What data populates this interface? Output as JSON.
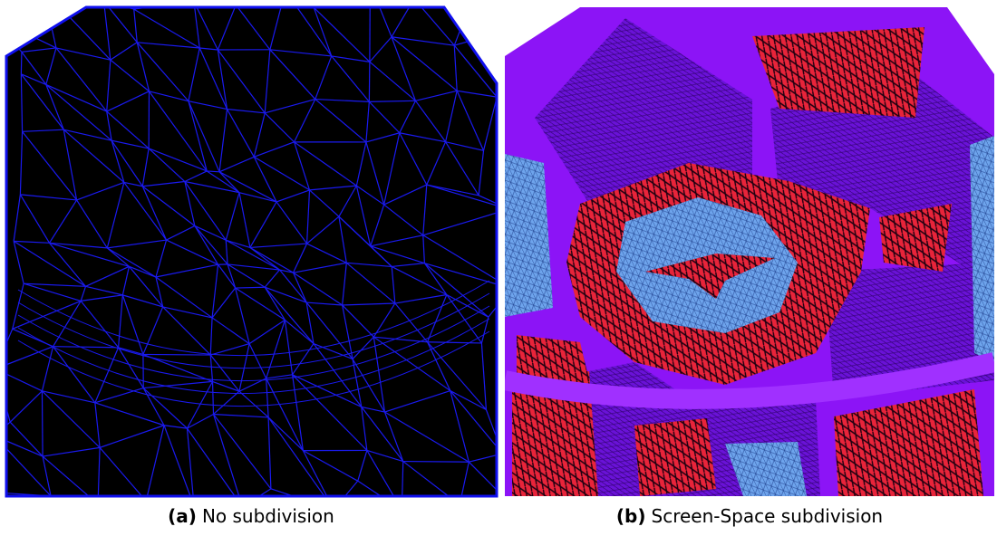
{
  "figures": [
    {
      "label": "(a)",
      "caption": "No subdivision"
    },
    {
      "label": "(b)",
      "caption": "Screen-Space subdivision"
    }
  ]
}
